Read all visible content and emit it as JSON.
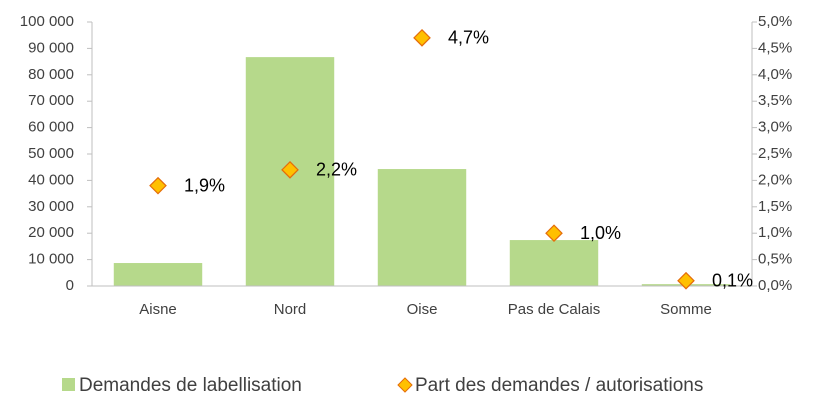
{
  "chart_data": {
    "type": "bar",
    "categories": [
      "Aisne",
      "Nord",
      "Oise",
      "Pas de Calais",
      "Somme"
    ],
    "series": [
      {
        "name": "Demandes de labellisation",
        "color": "#b6d98b",
        "values": [
          8700,
          86700,
          44300,
          17400,
          700
        ]
      },
      {
        "name": "Part des demandes / autorisations",
        "color": "#ffc000",
        "type": "scatter",
        "axis": "y2",
        "values": [
          1.9,
          2.2,
          4.7,
          1.0,
          0.1
        ],
        "value_labels": [
          "1,9%",
          "2,2%",
          "4,7%",
          "1,0%",
          "0,1%"
        ]
      }
    ],
    "ylim": [
      0,
      100000
    ],
    "yticks": [
      0,
      {
        "value": 10000,
        "label": "10 000"
      },
      {
        "value": 20000,
        "label": "20 000"
      },
      {
        "value": 30000,
        "label": "30 000"
      },
      {
        "value": 40000,
        "label": "40 000"
      },
      {
        "value": 50000,
        "label": "50 000"
      },
      {
        "value": 60000,
        "label": "60 000"
      },
      {
        "value": 70000,
        "label": "70 000"
      },
      {
        "value": 80000,
        "label": "80 000"
      },
      {
        "value": 90000,
        "label": "90 000"
      },
      {
        "value": 100000,
        "label": "100 000"
      }
    ],
    "y2lim": [
      0,
      5
    ],
    "y2ticks": [
      {
        "value": 0,
        "label": "0,0%"
      },
      {
        "value": 0.5,
        "label": "0,5%"
      },
      {
        "value": 1,
        "label": "1,0%"
      },
      {
        "value": 1.5,
        "label": "1,5%"
      },
      {
        "value": 2,
        "label": "2,0%"
      },
      {
        "value": 2.5,
        "label": "2,5%"
      },
      {
        "value": 3,
        "label": "3,0%"
      },
      {
        "value": 3.5,
        "label": "3,5%"
      },
      {
        "value": 4,
        "label": "4,0%"
      },
      {
        "value": 4.5,
        "label": "4,5%"
      },
      {
        "value": 5,
        "label": "5,0%"
      }
    ],
    "legend": "bottom"
  }
}
